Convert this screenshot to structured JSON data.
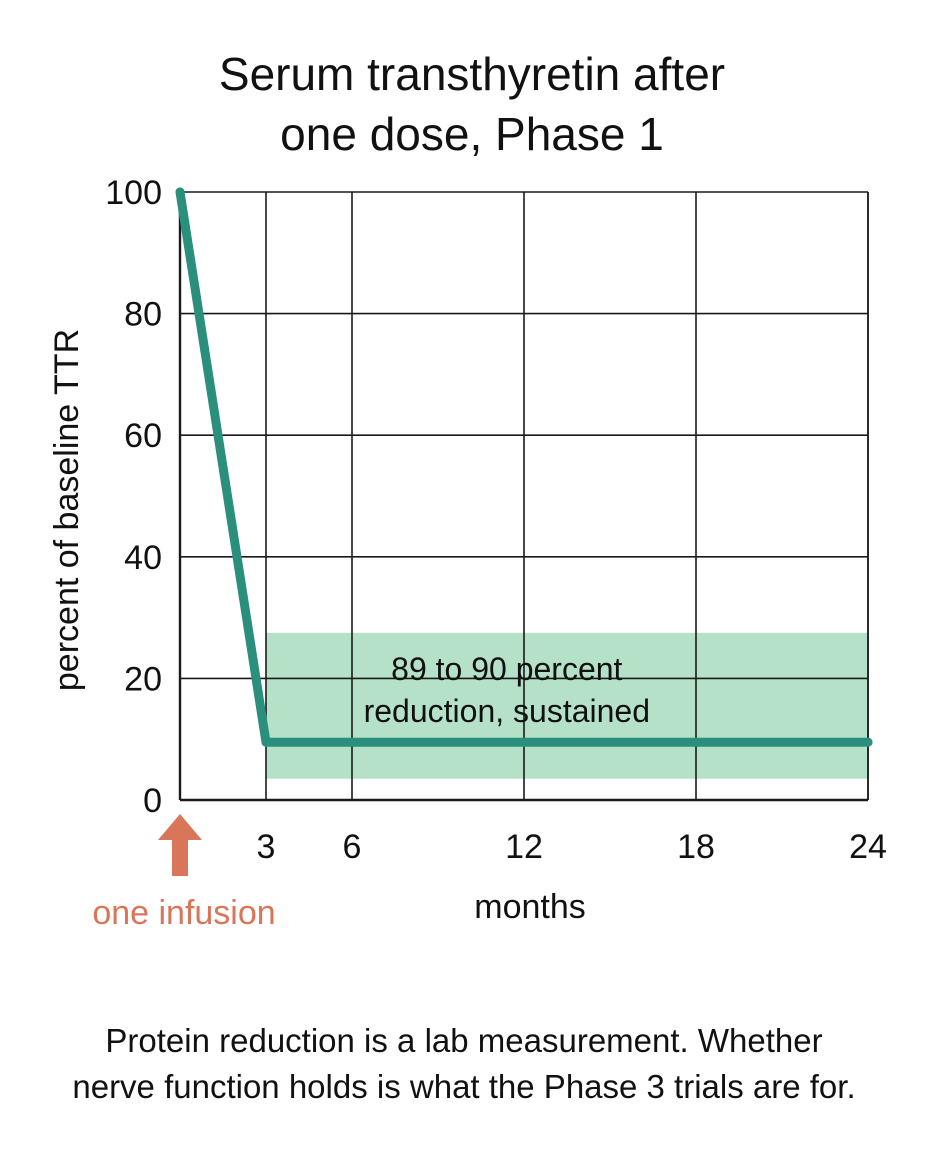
{
  "chart_data": {
    "type": "line",
    "title_lines": [
      "Serum transthyretin after",
      "one dose, Phase 1"
    ],
    "xlabel": "months",
    "ylabel": "percent of baseline TTR",
    "xlim": [
      0,
      24
    ],
    "ylim": [
      0,
      100
    ],
    "x_ticks": [
      3,
      6,
      12,
      18,
      24
    ],
    "y_ticks": [
      0,
      20,
      40,
      60,
      80,
      100
    ],
    "grid": true,
    "series": [
      {
        "color": "#2a8f7c",
        "points": [
          {
            "x": 0,
            "y": 100
          },
          {
            "x": 3,
            "y": 9.5
          },
          {
            "x": 24,
            "y": 9.5
          }
        ]
      }
    ],
    "band": {
      "x_from": 3,
      "x_to": 24,
      "y_from": 3.5,
      "y_to": 27.5,
      "color": "#a3d9bc",
      "label_lines": [
        "89 to 90 percent",
        "reduction, sustained"
      ]
    },
    "marker": {
      "x": 0,
      "label": "one infusion",
      "color": "#d9765a"
    }
  },
  "footnote": {
    "line1": "Protein reduction is a lab measurement. Whether",
    "line2": "nerve function holds is what the Phase 3 trials are for."
  }
}
